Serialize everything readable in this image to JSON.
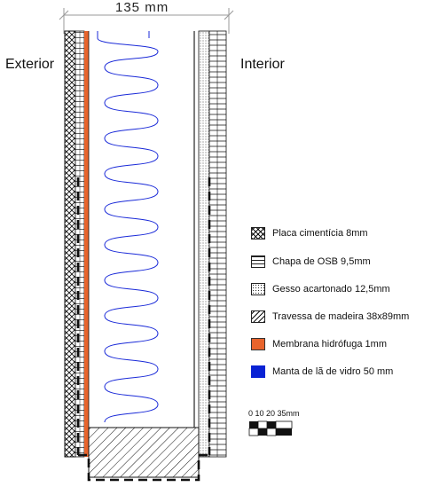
{
  "dimension": {
    "text": "135  mm"
  },
  "sides": {
    "exterior": "Exterior",
    "interior": "Interior"
  },
  "legend": [
    {
      "label": "Placa cimentícia 8mm",
      "pattern": "crosshatch"
    },
    {
      "label": "Chapa de OSB 9,5mm",
      "pattern": "horizontal-lines"
    },
    {
      "label": "Gesso acartonado 12,5mm",
      "pattern": "dots"
    },
    {
      "label": "Travessa de madeira 38x89mm",
      "pattern": "diagonal-lines"
    },
    {
      "label": "Membrana hidrófuga 1mm",
      "pattern": "solid",
      "color": "#e8642c"
    },
    {
      "label": "Manta de lã de vidro 50 mm",
      "pattern": "solid",
      "color": "#0a22d4"
    }
  ],
  "scale_bar": {
    "ticks_text": "0  10  20    35mm"
  },
  "colors": {
    "membrane": "#e8642c",
    "insulation": "#1a2ad8",
    "line": "#111111"
  }
}
